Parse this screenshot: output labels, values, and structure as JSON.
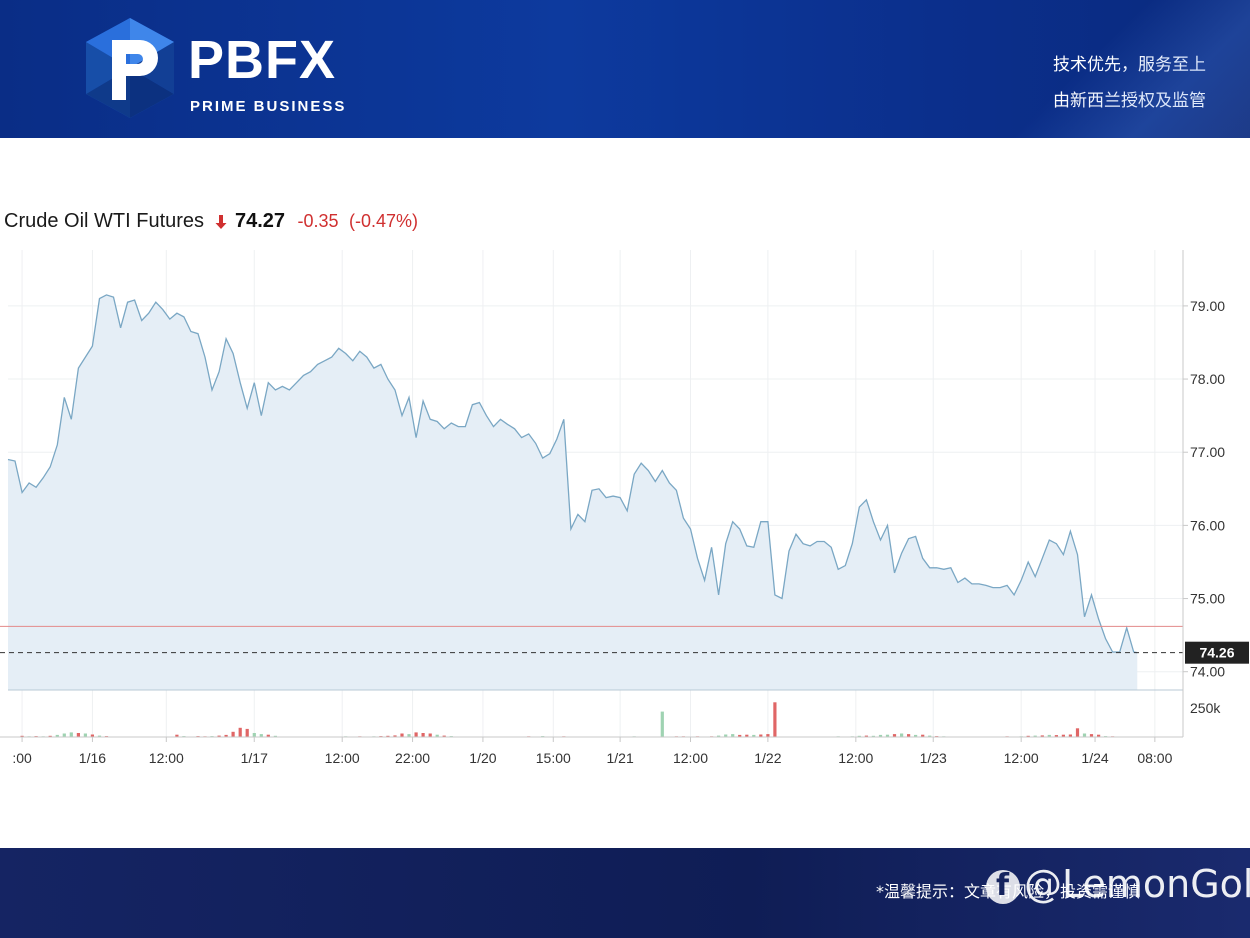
{
  "header": {
    "logo_text": "PBFX",
    "logo_sub": "PRIME BUSINESS",
    "slogan_1": "技术优先，服务至上",
    "slogan_2": "由新西兰授权及监管"
  },
  "quote": {
    "name": "Crude Oil WTI Futures",
    "direction": "down",
    "price": "74.27",
    "change": "-0.35",
    "change_pct": "(-0.47%)"
  },
  "footer": {
    "note": "*温馨提示：文章有风险，投资需谨慎",
    "watermark": "@LemonGold",
    "watermark_icon": "facebook-icon"
  },
  "colors": {
    "line": "#7aa7c4",
    "area": "#e5eef6",
    "up_volume": "#9fd3b2",
    "down_volume": "#e06666",
    "price_line": "#e38a8a",
    "current_label_bg": "#222222"
  },
  "chart_data": {
    "type": "area",
    "title": "Crude Oil WTI Futures",
    "xlabel": "",
    "ylabel": "",
    "ylim": [
      73.75,
      79.6
    ],
    "y_ticks": [
      "79.00",
      "78.00",
      "77.00",
      "76.00",
      "75.00",
      "74.00"
    ],
    "y_tick_values": [
      79,
      78,
      77,
      76,
      75,
      74
    ],
    "x_tick_labels": [
      ":00",
      "1/16",
      "12:00",
      "1/17",
      "12:00",
      "22:00",
      "1/20",
      "15:00",
      "1/21",
      "12:00",
      "1/22",
      "12:00",
      "1/23",
      "12:00",
      "1/24",
      "08:00"
    ],
    "x_tick_positions": [
      4,
      24,
      45,
      70,
      95,
      115,
      135,
      155,
      174,
      194,
      216,
      241,
      263,
      288,
      309,
      326
    ],
    "x_range": [
      0,
      334
    ],
    "price_reference": 74.62,
    "current_price": 74.26,
    "current_price_label": "74.26",
    "volume_tick_label": "250k",
    "volume_tick_value": 250,
    "volume_max": 320,
    "grid": true,
    "legend": "none",
    "price": [
      [
        0,
        76.9
      ],
      [
        2,
        76.88
      ],
      [
        4,
        76.45
      ],
      [
        6,
        76.58
      ],
      [
        8,
        76.52
      ],
      [
        10,
        76.65
      ],
      [
        12,
        76.8
      ],
      [
        14,
        77.1
      ],
      [
        16,
        77.75
      ],
      [
        18,
        77.45
      ],
      [
        20,
        78.15
      ],
      [
        22,
        78.3
      ],
      [
        24,
        78.45
      ],
      [
        26,
        79.1
      ],
      [
        28,
        79.15
      ],
      [
        30,
        79.12
      ],
      [
        32,
        78.7
      ],
      [
        34,
        79.05
      ],
      [
        36,
        79.08
      ],
      [
        38,
        78.8
      ],
      [
        40,
        78.9
      ],
      [
        42,
        79.05
      ],
      [
        44,
        78.95
      ],
      [
        46,
        78.82
      ],
      [
        48,
        78.9
      ],
      [
        50,
        78.85
      ],
      [
        52,
        78.65
      ],
      [
        54,
        78.62
      ],
      [
        56,
        78.3
      ],
      [
        58,
        77.85
      ],
      [
        60,
        78.1
      ],
      [
        62,
        78.55
      ],
      [
        64,
        78.35
      ],
      [
        66,
        77.95
      ],
      [
        68,
        77.6
      ],
      [
        70,
        77.95
      ],
      [
        72,
        77.5
      ],
      [
        74,
        77.95
      ],
      [
        76,
        77.85
      ],
      [
        78,
        77.9
      ],
      [
        80,
        77.85
      ],
      [
        82,
        77.95
      ],
      [
        84,
        78.05
      ],
      [
        86,
        78.1
      ],
      [
        88,
        78.2
      ],
      [
        90,
        78.25
      ],
      [
        92,
        78.3
      ],
      [
        94,
        78.42
      ],
      [
        96,
        78.35
      ],
      [
        98,
        78.25
      ],
      [
        100,
        78.38
      ],
      [
        102,
        78.3
      ],
      [
        104,
        78.15
      ],
      [
        106,
        78.2
      ],
      [
        108,
        78.0
      ],
      [
        110,
        77.85
      ],
      [
        112,
        77.5
      ],
      [
        114,
        77.75
      ],
      [
        116,
        77.2
      ],
      [
        118,
        77.7
      ],
      [
        120,
        77.45
      ],
      [
        122,
        77.42
      ],
      [
        124,
        77.32
      ],
      [
        126,
        77.4
      ],
      [
        128,
        77.35
      ],
      [
        130,
        77.35
      ],
      [
        132,
        77.65
      ],
      [
        134,
        77.68
      ],
      [
        136,
        77.5
      ],
      [
        138,
        77.35
      ],
      [
        140,
        77.45
      ],
      [
        142,
        77.38
      ],
      [
        144,
        77.32
      ],
      [
        146,
        77.2
      ],
      [
        148,
        77.25
      ],
      [
        150,
        77.12
      ],
      [
        152,
        76.92
      ],
      [
        154,
        76.98
      ],
      [
        156,
        77.18
      ],
      [
        158,
        77.45
      ],
      [
        160,
        75.95
      ],
      [
        162,
        76.15
      ],
      [
        164,
        76.05
      ],
      [
        166,
        76.48
      ],
      [
        168,
        76.5
      ],
      [
        170,
        76.38
      ],
      [
        172,
        76.4
      ],
      [
        174,
        76.38
      ],
      [
        176,
        76.2
      ],
      [
        178,
        76.7
      ],
      [
        180,
        76.85
      ],
      [
        182,
        76.75
      ],
      [
        184,
        76.6
      ],
      [
        186,
        76.75
      ],
      [
        188,
        76.58
      ],
      [
        190,
        76.48
      ],
      [
        192,
        76.1
      ],
      [
        194,
        75.95
      ],
      [
        196,
        75.55
      ],
      [
        198,
        75.25
      ],
      [
        200,
        75.7
      ],
      [
        202,
        75.05
      ],
      [
        204,
        75.75
      ],
      [
        206,
        76.05
      ],
      [
        208,
        75.95
      ],
      [
        210,
        75.72
      ],
      [
        212,
        75.7
      ],
      [
        214,
        76.05
      ],
      [
        216,
        76.05
      ],
      [
        218,
        75.05
      ],
      [
        220,
        75.0
      ],
      [
        222,
        75.65
      ],
      [
        224,
        75.88
      ],
      [
        226,
        75.75
      ],
      [
        228,
        75.72
      ],
      [
        230,
        75.78
      ],
      [
        232,
        75.78
      ],
      [
        234,
        75.7
      ],
      [
        236,
        75.4
      ],
      [
        238,
        75.45
      ],
      [
        240,
        75.75
      ],
      [
        242,
        76.25
      ],
      [
        244,
        76.35
      ],
      [
        246,
        76.05
      ],
      [
        248,
        75.8
      ],
      [
        250,
        76.0
      ],
      [
        252,
        75.35
      ],
      [
        254,
        75.62
      ],
      [
        256,
        75.82
      ],
      [
        258,
        75.85
      ],
      [
        260,
        75.55
      ],
      [
        262,
        75.42
      ],
      [
        264,
        75.42
      ],
      [
        266,
        75.4
      ],
      [
        268,
        75.42
      ],
      [
        270,
        75.22
      ],
      [
        272,
        75.28
      ],
      [
        274,
        75.2
      ],
      [
        276,
        75.2
      ],
      [
        278,
        75.18
      ],
      [
        280,
        75.15
      ],
      [
        282,
        75.15
      ],
      [
        284,
        75.18
      ],
      [
        286,
        75.05
      ],
      [
        288,
        75.25
      ],
      [
        290,
        75.5
      ],
      [
        292,
        75.3
      ],
      [
        294,
        75.55
      ],
      [
        296,
        75.8
      ],
      [
        298,
        75.75
      ],
      [
        300,
        75.6
      ],
      [
        302,
        75.92
      ],
      [
        304,
        75.6
      ],
      [
        306,
        74.75
      ],
      [
        308,
        75.05
      ],
      [
        310,
        74.72
      ],
      [
        312,
        74.45
      ],
      [
        314,
        74.27
      ],
      [
        316,
        74.27
      ],
      [
        318,
        74.6
      ],
      [
        320,
        74.27
      ],
      [
        321,
        74.26
      ]
    ],
    "volume": [
      [
        4,
        10,
        "down"
      ],
      [
        6,
        6,
        "up"
      ],
      [
        8,
        8,
        "down"
      ],
      [
        10,
        6,
        "up"
      ],
      [
        12,
        10,
        "down"
      ],
      [
        14,
        18,
        "up"
      ],
      [
        16,
        30,
        "up"
      ],
      [
        18,
        40,
        "up"
      ],
      [
        20,
        35,
        "down"
      ],
      [
        22,
        30,
        "up"
      ],
      [
        24,
        22,
        "down"
      ],
      [
        26,
        12,
        "up"
      ],
      [
        28,
        8,
        "down"
      ],
      [
        48,
        20,
        "down"
      ],
      [
        50,
        8,
        "up"
      ],
      [
        54,
        8,
        "down"
      ],
      [
        56,
        6,
        "down"
      ],
      [
        58,
        8,
        "up"
      ],
      [
        60,
        12,
        "down"
      ],
      [
        62,
        18,
        "down"
      ],
      [
        64,
        45,
        "down"
      ],
      [
        66,
        80,
        "down"
      ],
      [
        68,
        70,
        "down"
      ],
      [
        70,
        35,
        "up"
      ],
      [
        72,
        25,
        "up"
      ],
      [
        74,
        20,
        "down"
      ],
      [
        76,
        10,
        "up"
      ],
      [
        96,
        6,
        "up"
      ],
      [
        100,
        6,
        "down"
      ],
      [
        104,
        6,
        "up"
      ],
      [
        106,
        8,
        "down"
      ],
      [
        108,
        10,
        "down"
      ],
      [
        110,
        14,
        "down"
      ],
      [
        112,
        30,
        "down"
      ],
      [
        114,
        25,
        "up"
      ],
      [
        116,
        40,
        "down"
      ],
      [
        118,
        35,
        "down"
      ],
      [
        120,
        30,
        "down"
      ],
      [
        122,
        20,
        "up"
      ],
      [
        124,
        12,
        "down"
      ],
      [
        126,
        8,
        "up"
      ],
      [
        148,
        6,
        "down"
      ],
      [
        152,
        8,
        "up"
      ],
      [
        158,
        6,
        "down"
      ],
      [
        178,
        6,
        "up"
      ],
      [
        186,
        220,
        "up"
      ],
      [
        190,
        6,
        "down"
      ],
      [
        192,
        6,
        "down"
      ],
      [
        196,
        6,
        "down"
      ],
      [
        200,
        6,
        "down"
      ],
      [
        202,
        12,
        "up"
      ],
      [
        204,
        22,
        "up"
      ],
      [
        206,
        25,
        "up"
      ],
      [
        208,
        18,
        "down"
      ],
      [
        210,
        20,
        "down"
      ],
      [
        212,
        18,
        "up"
      ],
      [
        214,
        22,
        "down"
      ],
      [
        216,
        25,
        "down"
      ],
      [
        218,
        300,
        "down"
      ],
      [
        236,
        6,
        "up"
      ],
      [
        240,
        6,
        "up"
      ],
      [
        242,
        10,
        "up"
      ],
      [
        244,
        12,
        "down"
      ],
      [
        246,
        10,
        "up"
      ],
      [
        248,
        18,
        "up"
      ],
      [
        250,
        20,
        "up"
      ],
      [
        252,
        25,
        "down"
      ],
      [
        254,
        30,
        "up"
      ],
      [
        256,
        25,
        "down"
      ],
      [
        258,
        18,
        "up"
      ],
      [
        260,
        20,
        "down"
      ],
      [
        262,
        12,
        "up"
      ],
      [
        264,
        8,
        "down"
      ],
      [
        266,
        6,
        "up"
      ],
      [
        284,
        6,
        "down"
      ],
      [
        288,
        6,
        "up"
      ],
      [
        290,
        10,
        "down"
      ],
      [
        292,
        12,
        "up"
      ],
      [
        294,
        14,
        "down"
      ],
      [
        296,
        18,
        "up"
      ],
      [
        298,
        16,
        "down"
      ],
      [
        300,
        20,
        "down"
      ],
      [
        302,
        22,
        "down"
      ],
      [
        304,
        75,
        "down"
      ],
      [
        306,
        30,
        "up"
      ],
      [
        308,
        25,
        "down"
      ],
      [
        310,
        20,
        "down"
      ],
      [
        312,
        8,
        "up"
      ],
      [
        314,
        6,
        "down"
      ]
    ]
  }
}
